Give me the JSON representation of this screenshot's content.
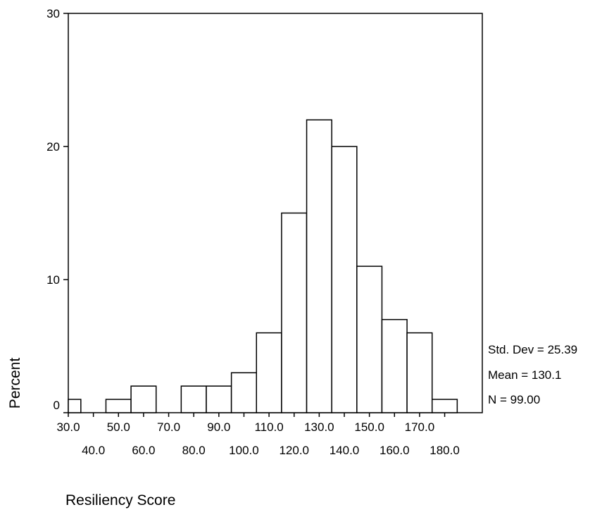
{
  "chart_data": {
    "type": "bar",
    "ylabel": "Percent",
    "xlabel": "Resiliency Score",
    "ylim": [
      0,
      30
    ],
    "y_ticks": [
      "0",
      "10",
      "20",
      "30"
    ],
    "x_ticks_upper": [
      "30.0",
      "50.0",
      "70.0",
      "90.0",
      "110.0",
      "130.0",
      "150.0",
      "170.0"
    ],
    "x_ticks_lower": [
      "40.0",
      "60.0",
      "80.0",
      "100.0",
      "120.0",
      "140.0",
      "160.0",
      "180.0"
    ],
    "categories": [
      "30.0",
      "40.0",
      "50.0",
      "60.0",
      "70.0",
      "80.0",
      "90.0",
      "100.0",
      "110.0",
      "120.0",
      "130.0",
      "140.0",
      "150.0",
      "160.0",
      "170.0",
      "180.0"
    ],
    "values": [
      1,
      0,
      1,
      2,
      0,
      2,
      2,
      3,
      6,
      15,
      22,
      20,
      11,
      7,
      6,
      1
    ],
    "stats": {
      "std_dev": "Std. Dev = 25.39",
      "mean": "Mean = 130.1",
      "n": "N = 99.00"
    },
    "grid": false,
    "bar_fill": "#ffffff",
    "bar_stroke": "#000000"
  }
}
